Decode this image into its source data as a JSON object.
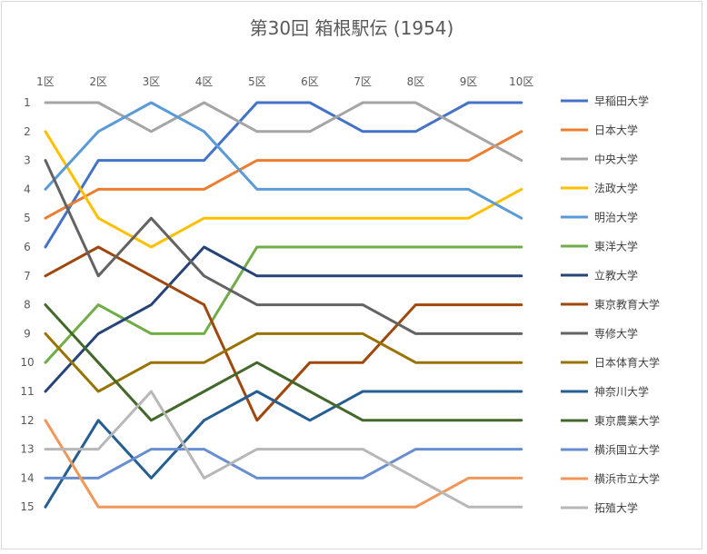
{
  "chart_data": {
    "type": "line",
    "title": "第30回 箱根駅伝 (1954)",
    "categories": [
      "1区",
      "2区",
      "3区",
      "4区",
      "5区",
      "6区",
      "7区",
      "8区",
      "9区",
      "10区"
    ],
    "y_ticks": [
      "1",
      "2",
      "3",
      "4",
      "5",
      "6",
      "7",
      "8",
      "9",
      "10",
      "11",
      "12",
      "13",
      "14",
      "15"
    ],
    "y_range": [
      1,
      15
    ],
    "y_reversed": true,
    "x_axis_position": "top",
    "grid": false,
    "legend_position": "right",
    "series": [
      {
        "name": "早稲田大学",
        "color": "#4472C4",
        "values": [
          6,
          3,
          3,
          3,
          1,
          1,
          2,
          2,
          1,
          1
        ]
      },
      {
        "name": "日本大学",
        "color": "#ED7D31",
        "values": [
          5,
          4,
          4,
          4,
          3,
          3,
          3,
          3,
          3,
          2
        ]
      },
      {
        "name": "中央大学",
        "color": "#A5A5A5",
        "values": [
          1,
          1,
          2,
          1,
          2,
          2,
          1,
          1,
          2,
          3
        ]
      },
      {
        "name": "法政大学",
        "color": "#FFC000",
        "values": [
          2,
          5,
          6,
          5,
          5,
          5,
          5,
          5,
          5,
          4
        ]
      },
      {
        "name": "明治大学",
        "color": "#5B9BD5",
        "values": [
          4,
          2,
          1,
          2,
          4,
          4,
          4,
          4,
          4,
          5
        ]
      },
      {
        "name": "東洋大学",
        "color": "#70AD47",
        "values": [
          10,
          8,
          9,
          9,
          6,
          6,
          6,
          6,
          6,
          6
        ]
      },
      {
        "name": "立教大学",
        "color": "#264478",
        "values": [
          11,
          9,
          8,
          6,
          7,
          7,
          7,
          7,
          7,
          7
        ]
      },
      {
        "name": "東京教育大学",
        "color": "#9E480E",
        "values": [
          7,
          6,
          7,
          8,
          12,
          10,
          10,
          8,
          8,
          8
        ]
      },
      {
        "name": "専修大学",
        "color": "#636363",
        "values": [
          3,
          7,
          5,
          7,
          8,
          8,
          8,
          9,
          9,
          9
        ]
      },
      {
        "name": "日本体育大学",
        "color": "#997300",
        "values": [
          9,
          11,
          10,
          10,
          9,
          9,
          9,
          10,
          10,
          10
        ]
      },
      {
        "name": "神奈川大学",
        "color": "#255E91",
        "values": [
          15,
          12,
          14,
          12,
          11,
          12,
          11,
          11,
          11,
          11
        ]
      },
      {
        "name": "東京農業大学",
        "color": "#43682B",
        "values": [
          8,
          10,
          12,
          11,
          10,
          11,
          12,
          12,
          12,
          12
        ]
      },
      {
        "name": "横浜国立大学",
        "color": "#698ED0",
        "values": [
          14,
          14,
          13,
          13,
          14,
          14,
          14,
          13,
          13,
          13
        ]
      },
      {
        "name": "横浜市立大学",
        "color": "#F1975A",
        "values": [
          12,
          15,
          15,
          15,
          15,
          15,
          15,
          15,
          14,
          14
        ]
      },
      {
        "name": "拓殖大学",
        "color": "#B7B7B7",
        "values": [
          13,
          13,
          11,
          14,
          13,
          13,
          13,
          14,
          15,
          15
        ]
      }
    ]
  }
}
